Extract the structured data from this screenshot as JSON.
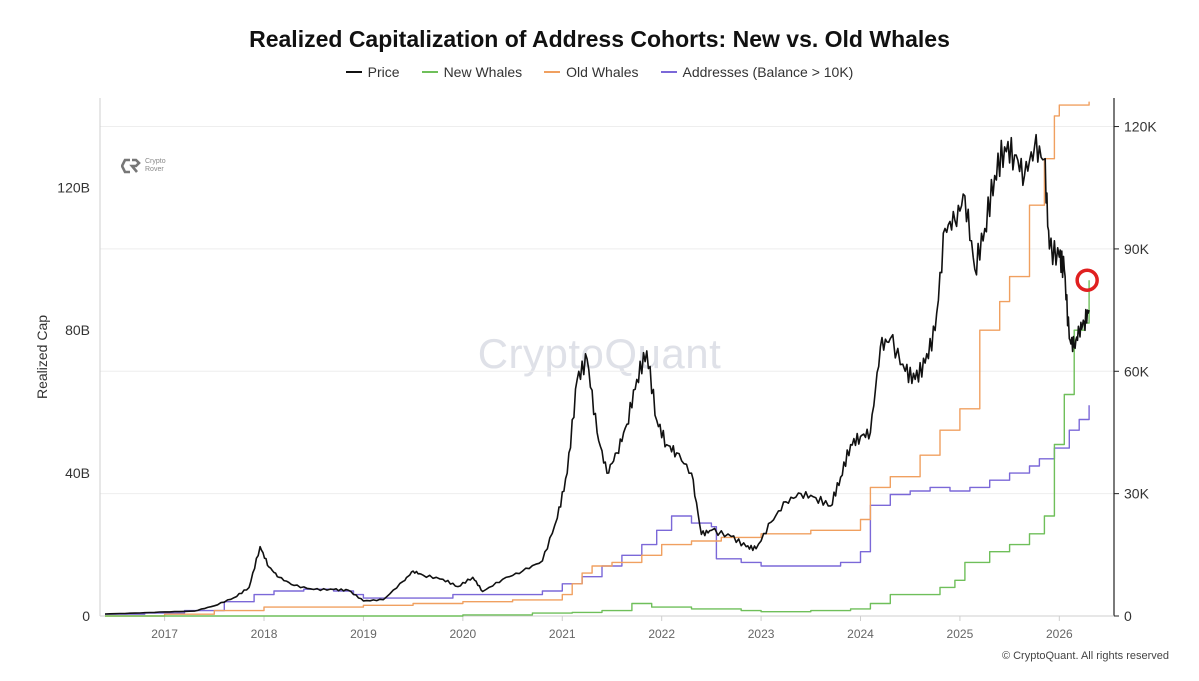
{
  "chart_data": {
    "type": "line",
    "title": "Realized Capitalization of Address Cohorts: New vs. Old Whales",
    "ylabel": "Realized Cap",
    "ylabel_right": "",
    "xlabel": "",
    "ylim": [
      0,
      145
    ],
    "ylim_right": [
      0,
      127000
    ],
    "xlim": [
      2016.35,
      2026.55
    ],
    "y_ticks": [
      {
        "v": 0,
        "label": "0"
      },
      {
        "v": 40,
        "label": "40B"
      },
      {
        "v": 80,
        "label": "80B"
      },
      {
        "v": 120,
        "label": "120B"
      }
    ],
    "y_ticks_right": [
      {
        "v": 0,
        "label": "0"
      },
      {
        "v": 30000,
        "label": "30K"
      },
      {
        "v": 60000,
        "label": "60K"
      },
      {
        "v": 90000,
        "label": "90K"
      },
      {
        "v": 120000,
        "label": "120K"
      }
    ],
    "x_ticks": [
      {
        "v": 2017,
        "label": "2017"
      },
      {
        "v": 2018,
        "label": "2018"
      },
      {
        "v": 2019,
        "label": "2019"
      },
      {
        "v": 2020,
        "label": "2020"
      },
      {
        "v": 2021,
        "label": "2021"
      },
      {
        "v": 2022,
        "label": "2022"
      },
      {
        "v": 2023,
        "label": "2023"
      },
      {
        "v": 2024,
        "label": "2024"
      },
      {
        "v": 2025,
        "label": "2025"
      },
      {
        "v": 2026,
        "label": "2026"
      }
    ],
    "grid": true,
    "legend_position": "top-center",
    "series": [
      {
        "name": "Price",
        "color": "#111111",
        "axis": "right",
        "x": [
          2016.4,
          2016.7,
          2017.0,
          2017.3,
          2017.5,
          2017.7,
          2017.85,
          2017.96,
          2018.05,
          2018.15,
          2018.3,
          2018.5,
          2018.7,
          2018.85,
          2019.0,
          2019.2,
          2019.4,
          2019.5,
          2019.6,
          2019.8,
          2019.95,
          2020.1,
          2020.2,
          2020.4,
          2020.6,
          2020.8,
          2020.95,
          2021.05,
          2021.15,
          2021.25,
          2021.35,
          2021.45,
          2021.55,
          2021.65,
          2021.75,
          2021.85,
          2021.95,
          2022.05,
          2022.15,
          2022.3,
          2022.4,
          2022.5,
          2022.7,
          2022.85,
          2022.95,
          2023.1,
          2023.25,
          2023.4,
          2023.55,
          2023.7,
          2023.8,
          2023.9,
          2024.0,
          2024.1,
          2024.2,
          2024.3,
          2024.45,
          2024.55,
          2024.65,
          2024.75,
          2024.85,
          2024.95,
          2025.05,
          2025.15,
          2025.25,
          2025.35,
          2025.45,
          2025.55,
          2025.65,
          2025.75,
          2025.85,
          2025.9,
          2026.0,
          2026.05,
          2026.1,
          2026.15,
          2026.2,
          2026.25,
          2026.3
        ],
        "values": [
          500,
          700,
          1000,
          1200,
          2500,
          4500,
          7000,
          17000,
          12000,
          9500,
          7500,
          6500,
          6500,
          6300,
          3700,
          4000,
          8500,
          11000,
          10000,
          9000,
          7200,
          9500,
          6000,
          9000,
          11000,
          13500,
          24000,
          35000,
          58000,
          63000,
          45000,
          35000,
          40000,
          47000,
          58000,
          65000,
          48000,
          42000,
          40000,
          35000,
          20000,
          21000,
          19500,
          17000,
          16500,
          23000,
          28000,
          30000,
          29000,
          27000,
          34000,
          42000,
          44000,
          45000,
          66000,
          68000,
          60000,
          58000,
          62000,
          70000,
          95000,
          97000,
          103000,
          85000,
          95000,
          108000,
          115000,
          113000,
          108000,
          115000,
          112000,
          90000,
          88000,
          85000,
          68000,
          66000,
          70000,
          72000,
          75000
        ]
      },
      {
        "name": "New Whales",
        "color": "#6fbf5a",
        "axis": "left",
        "x": [
          2016.4,
          2019.6,
          2020.0,
          2020.7,
          2021.1,
          2021.4,
          2021.7,
          2021.9,
          2022.3,
          2022.8,
          2023.0,
          2023.5,
          2023.9,
          2024.1,
          2024.3,
          2024.8,
          2024.95,
          2025.05,
          2025.3,
          2025.5,
          2025.7,
          2025.85,
          2025.95,
          2026.05,
          2026.15,
          2026.25,
          2026.3
        ],
        "values": [
          0,
          0,
          0.3,
          0.8,
          1.0,
          1.5,
          3.5,
          2.5,
          2.0,
          1.5,
          1.2,
          1.5,
          2.0,
          3.5,
          6,
          8,
          10,
          15,
          18,
          20,
          23,
          28,
          48,
          62,
          80,
          82,
          94
        ]
      },
      {
        "name": "Old Whales",
        "color": "#f0a060",
        "axis": "left",
        "x": [
          2016.4,
          2017.0,
          2017.5,
          2018.0,
          2018.5,
          2019.0,
          2019.5,
          2020.0,
          2020.5,
          2021.0,
          2021.1,
          2021.2,
          2021.3,
          2021.5,
          2021.8,
          2022.0,
          2022.3,
          2022.6,
          2023.0,
          2023.5,
          2024.0,
          2024.1,
          2024.3,
          2024.6,
          2024.8,
          2025.0,
          2025.2,
          2025.4,
          2025.5,
          2025.7,
          2025.85,
          2025.95,
          2026.0,
          2026.3
        ],
        "values": [
          0,
          0.5,
          1.5,
          2.5,
          2.5,
          3.0,
          3.5,
          4.0,
          4.5,
          6.0,
          9,
          12,
          14,
          15,
          17,
          20,
          21,
          22,
          23,
          24,
          27,
          36,
          39,
          45,
          52,
          58,
          80,
          88,
          95,
          115,
          128,
          140,
          143,
          144
        ]
      },
      {
        "name": "Addresses (Balance > 10K)",
        "color": "#7b68d8",
        "axis": "left",
        "x": [
          2016.4,
          2016.8,
          2017.2,
          2017.6,
          2017.9,
          2018.1,
          2018.4,
          2018.7,
          2018.9,
          2019.0,
          2019.3,
          2019.6,
          2019.9,
          2020.2,
          2020.5,
          2020.8,
          2021.0,
          2021.2,
          2021.4,
          2021.6,
          2021.8,
          2021.95,
          2022.1,
          2022.3,
          2022.5,
          2022.55,
          2022.8,
          2023.0,
          2023.4,
          2023.8,
          2024.0,
          2024.1,
          2024.3,
          2024.5,
          2024.7,
          2024.9,
          2025.1,
          2025.3,
          2025.5,
          2025.7,
          2025.8,
          2025.95,
          2026.1,
          2026.2,
          2026.3
        ],
        "values": [
          0.5,
          0.8,
          1.5,
          4,
          6,
          7,
          7.5,
          7,
          6,
          5,
          5,
          5,
          6,
          6,
          6,
          7,
          9,
          11,
          14,
          17,
          20,
          24,
          28,
          26,
          25,
          16,
          15,
          14,
          14,
          15,
          18,
          31,
          34,
          35,
          36,
          35,
          36,
          38,
          40,
          42,
          44,
          47,
          52,
          55,
          59
        ]
      }
    ],
    "annotations": [
      {
        "type": "circle",
        "x": 2026.28,
        "y": 94,
        "color": "#e02020"
      }
    ]
  },
  "watermark": "CryptoQuant",
  "logo_text": [
    "Crypto",
    "Rover"
  ],
  "copyright": "© CryptoQuant. All rights reserved"
}
